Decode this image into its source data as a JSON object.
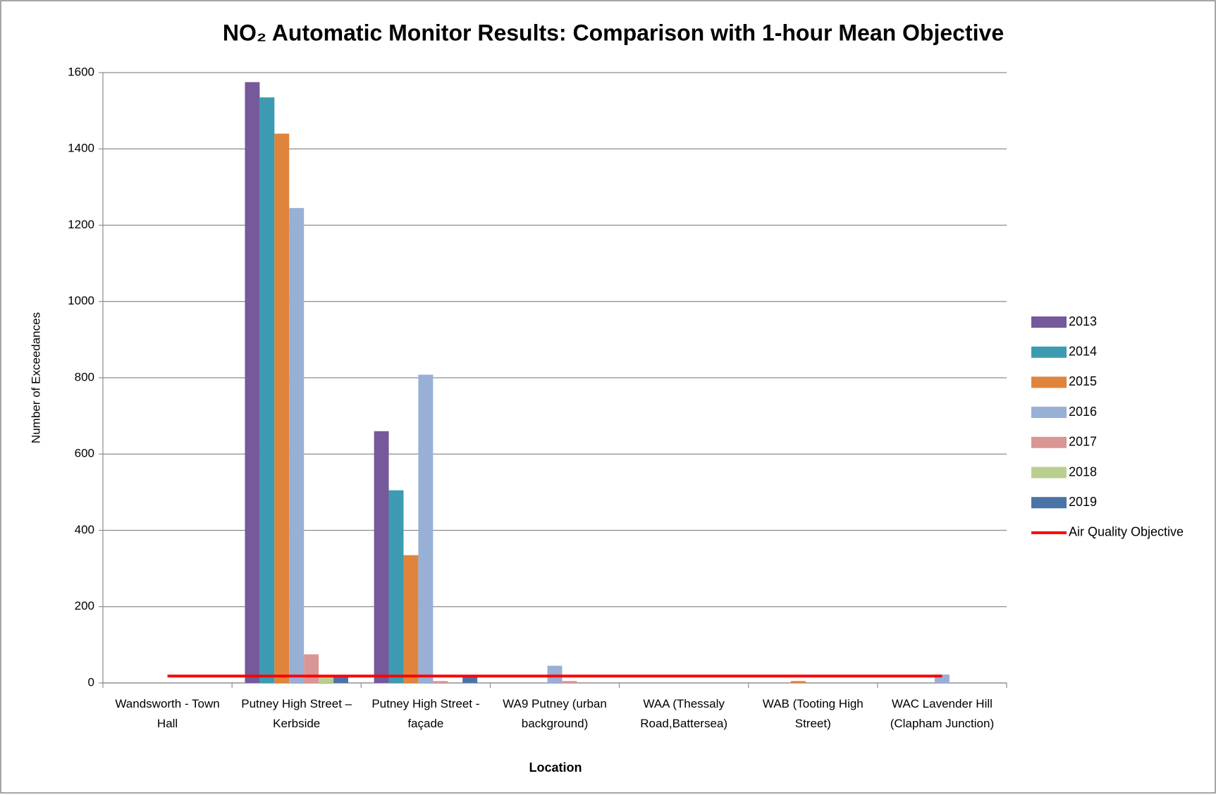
{
  "chart_data": {
    "type": "bar",
    "title": "NO₂ Automatic Monitor Results: Comparison  with 1-hour Mean Objective",
    "xlabel": "Location",
    "ylabel": "Number of Exceedances",
    "categories": [
      "Wandsworth - Town Hall",
      "Putney High Street –Kerbside",
      "Putney High Street -façade",
      "WA9 Putney (urban background)",
      "WAA (Thessaly Road,Battersea)",
      "WAB (Tooting High Street)",
      "WAC Lavender Hill (Clapham Junction)"
    ],
    "series": [
      {
        "name": "2013",
        "color": "#75599b",
        "values": [
          0,
          1575,
          660,
          0,
          0,
          0,
          0
        ]
      },
      {
        "name": "2014",
        "color": "#3c9bb0",
        "values": [
          0,
          1535,
          505,
          0,
          0,
          0,
          0
        ]
      },
      {
        "name": "2015",
        "color": "#e0843c",
        "values": [
          0,
          1440,
          335,
          0,
          0,
          5,
          0
        ]
      },
      {
        "name": "2016",
        "color": "#98afd6",
        "values": [
          0,
          1245,
          808,
          45,
          0,
          0,
          22
        ]
      },
      {
        "name": "2017",
        "color": "#d99694",
        "values": [
          0,
          75,
          5,
          5,
          0,
          0,
          0
        ]
      },
      {
        "name": "2018",
        "color": "#b9cf8f",
        "values": [
          0,
          20,
          0,
          0,
          0,
          0,
          0
        ]
      },
      {
        "name": "2019",
        "color": "#4a73a8",
        "values": [
          0,
          15,
          15,
          0,
          0,
          0,
          0
        ]
      },
      {
        "name": "Air Quality Objective",
        "color": "#ff0000",
        "type": "line",
        "values": [
          18,
          18,
          18,
          18,
          18,
          18,
          18
        ]
      }
    ],
    "ylim": [
      0,
      1600
    ],
    "yticks": [
      0,
      200,
      400,
      600,
      800,
      1000,
      1200,
      1400,
      1600
    ],
    "grid": true,
    "legend": "right"
  }
}
